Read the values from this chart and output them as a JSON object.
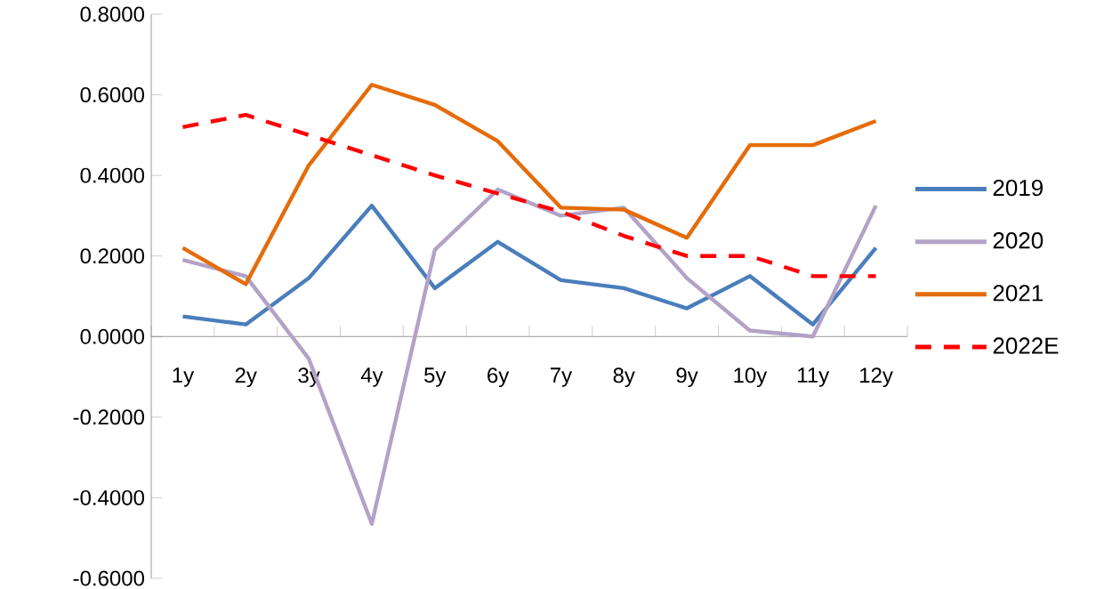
{
  "chart_data": {
    "type": "line",
    "categories": [
      "1y",
      "2y",
      "3y",
      "4y",
      "5y",
      "6y",
      "7y",
      "8y",
      "9y",
      "10y",
      "11y",
      "12y"
    ],
    "series": [
      {
        "name": "2019",
        "color": "#4a7ebb",
        "values": [
          0.05,
          0.03,
          0.145,
          0.325,
          0.12,
          0.235,
          0.14,
          0.12,
          0.07,
          0.15,
          0.03,
          0.22
        ]
      },
      {
        "name": "2020",
        "color": "#b3a2c7",
        "values": [
          0.19,
          0.15,
          -0.055,
          -0.465,
          0.215,
          0.365,
          0.3,
          0.32,
          0.145,
          0.015,
          0.0,
          0.325
        ]
      },
      {
        "name": "2021",
        "color": "#e46c0a",
        "values": [
          0.22,
          0.13,
          0.425,
          0.625,
          0.575,
          0.485,
          0.32,
          0.315,
          0.245,
          0.475,
          0.475,
          0.535
        ]
      },
      {
        "name": "2022E",
        "color": "#ff0000",
        "line_style": "dashed",
        "values": [
          0.52,
          0.55,
          0.5,
          0.45,
          0.4,
          0.355,
          0.31,
          0.25,
          0.2,
          0.2,
          0.15,
          0.15
        ]
      }
    ],
    "ylim": [
      -0.6,
      0.8
    ],
    "yticks": [
      {
        "value": -0.6,
        "label": "-0.6000"
      },
      {
        "value": -0.4,
        "label": "-0.4000"
      },
      {
        "value": -0.2,
        "label": "-0.2000"
      },
      {
        "value": 0,
        "label": "0.0000"
      },
      {
        "value": 0.2,
        "label": "0.2000"
      },
      {
        "value": 0.4,
        "label": "0.4000"
      },
      {
        "value": 0.6,
        "label": "0.6000"
      },
      {
        "value": 0.8,
        "label": "0.8000"
      }
    ],
    "grid": false,
    "legend": "right",
    "marker": "none",
    "line_style": "solid"
  }
}
